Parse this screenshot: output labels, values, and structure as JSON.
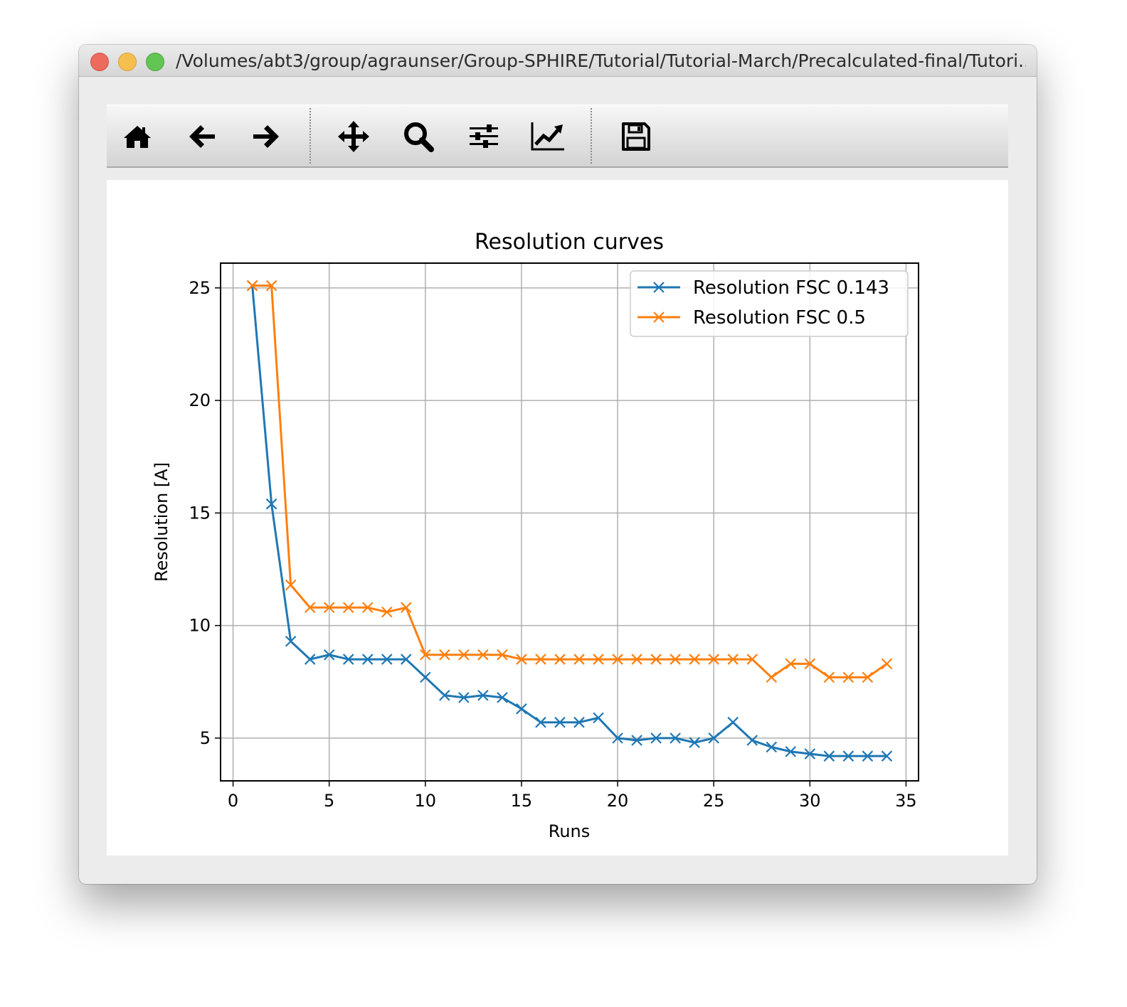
{
  "window": {
    "title": "/Volumes/abt3/group/agraunser/Group-SPHIRE/Tutorial/Tutorial-March/Precalculated-final/Tutori..."
  },
  "toolbar": {
    "buttons": [
      {
        "name": "home-icon"
      },
      {
        "name": "back-arrow-icon"
      },
      {
        "name": "forward-arrow-icon"
      },
      {
        "name": "pan-move-icon"
      },
      {
        "name": "zoom-magnifier-icon"
      },
      {
        "name": "subplot-sliders-icon"
      },
      {
        "name": "edit-axes-chart-icon"
      },
      {
        "name": "save-floppy-icon"
      }
    ]
  },
  "chart_data": {
    "type": "line",
    "title": "Resolution curves",
    "xlabel": "Runs",
    "ylabel": "Resolution [A]",
    "xlim": [
      -0.65,
      35.65
    ],
    "ylim": [
      3.1,
      26.1
    ],
    "xticks": [
      0,
      5,
      10,
      15,
      20,
      25,
      30,
      35
    ],
    "yticks": [
      5,
      10,
      15,
      20,
      25
    ],
    "grid": true,
    "legend_position": "top-right",
    "marker": "x",
    "x": [
      1,
      2,
      3,
      4,
      5,
      6,
      7,
      8,
      9,
      10,
      11,
      12,
      13,
      14,
      15,
      16,
      17,
      18,
      19,
      20,
      21,
      22,
      23,
      24,
      25,
      26,
      27,
      28,
      29,
      30,
      31,
      32,
      33,
      34
    ],
    "series": [
      {
        "name": "Resolution FSC 0.143",
        "color": "#1f77b4",
        "values": [
          25.1,
          15.4,
          9.3,
          8.5,
          8.7,
          8.5,
          8.5,
          8.5,
          8.5,
          7.7,
          6.9,
          6.8,
          6.9,
          6.8,
          6.3,
          5.7,
          5.7,
          5.7,
          5.9,
          5.0,
          4.9,
          5.0,
          5.0,
          4.8,
          5.0,
          5.7,
          4.9,
          4.6,
          4.4,
          4.3,
          4.2,
          4.2,
          4.2,
          4.2
        ]
      },
      {
        "name": "Resolution FSC 0.5",
        "color": "#ff7f0e",
        "values": [
          25.1,
          25.1,
          11.8,
          10.8,
          10.8,
          10.8,
          10.8,
          10.6,
          10.8,
          8.7,
          8.7,
          8.7,
          8.7,
          8.7,
          8.5,
          8.5,
          8.5,
          8.5,
          8.5,
          8.5,
          8.5,
          8.5,
          8.5,
          8.5,
          8.5,
          8.5,
          8.5,
          7.7,
          8.3,
          8.3,
          7.7,
          7.7,
          7.7,
          8.3
        ]
      }
    ]
  }
}
